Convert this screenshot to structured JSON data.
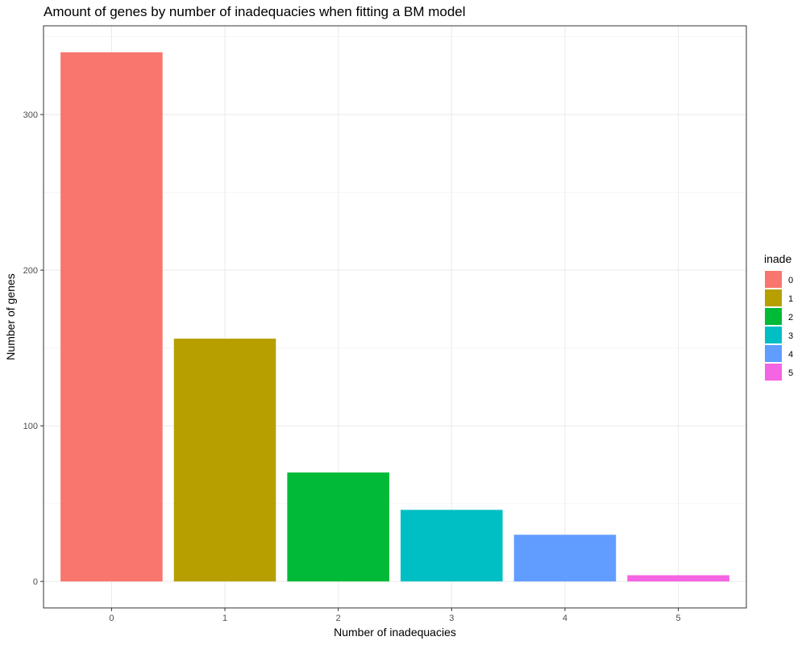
{
  "chart_data": {
    "type": "bar",
    "title": "Amount of genes by number of inadequacies when fitting a BM model",
    "xlabel": "Number of inadequacies",
    "ylabel": "Number of genes",
    "categories": [
      "0",
      "1",
      "2",
      "3",
      "4",
      "5"
    ],
    "values": [
      340,
      156,
      70,
      46,
      30,
      4
    ],
    "colors": [
      "#F8766D",
      "#B79F00",
      "#00BA38",
      "#00BFC4",
      "#619CFF",
      "#F564E3"
    ],
    "ylim": [
      -17,
      357
    ],
    "y_ticks": [
      0,
      100,
      200,
      300
    ],
    "y_tick_labels": [
      "0",
      "100",
      "200",
      "300"
    ],
    "grid": true,
    "legend": {
      "title": "inade",
      "position": "right",
      "items": [
        "0",
        "1",
        "2",
        "3",
        "4",
        "5"
      ]
    }
  }
}
